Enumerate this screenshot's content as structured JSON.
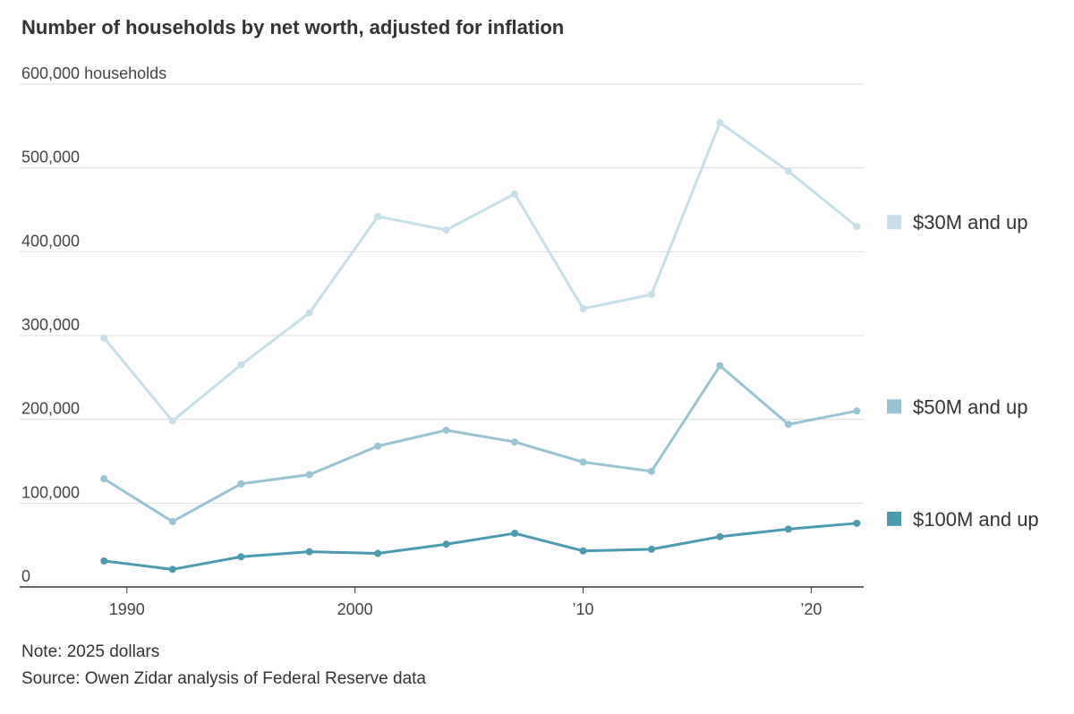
{
  "chart_data": {
    "type": "line",
    "title": "Number of households by net worth, adjusted for inflation",
    "x": [
      1989,
      1992,
      1995,
      1998,
      2001,
      2004,
      2007,
      2010,
      2013,
      2016,
      2019,
      2022
    ],
    "series": [
      {
        "name": "$30M and up",
        "color": "#c6dfe9",
        "values": [
          297000,
          198000,
          265000,
          327000,
          442000,
          426000,
          469000,
          332000,
          349000,
          554000,
          496000,
          430000
        ]
      },
      {
        "name": "$50M and up",
        "color": "#98c3d2",
        "values": [
          129000,
          78000,
          123000,
          134000,
          168000,
          187000,
          173000,
          149000,
          138000,
          264000,
          194000,
          210000
        ]
      },
      {
        "name": "$100M and up",
        "color": "#4a9bb0",
        "values": [
          31000,
          21000,
          36000,
          42000,
          40000,
          51000,
          64000,
          43000,
          45000,
          60000,
          69000,
          76000
        ]
      }
    ],
    "xlim": [
      1985.3,
      2022.3
    ],
    "xticks": [
      1990,
      2000,
      {
        "value": 2010,
        "label": "’10"
      },
      {
        "value": 2020,
        "label": "’20"
      }
    ],
    "ylim": [
      0,
      600000
    ],
    "yticks": [
      0,
      {
        "value": 100000,
        "label": "100,000"
      },
      {
        "value": 200000,
        "label": "200,000"
      },
      {
        "value": 300000,
        "label": "300,000"
      },
      {
        "value": 400000,
        "label": "400,000"
      },
      {
        "value": 500000,
        "label": "500,000"
      },
      {
        "value": 600000,
        "label": "600,000 households"
      }
    ],
    "grid": true,
    "note": "Note: 2025 dollars",
    "source": "Source: Owen Zidar analysis of Federal Reserve data"
  }
}
